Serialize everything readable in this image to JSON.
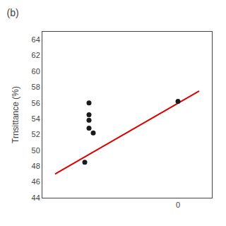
{
  "chart_data": {
    "type": "scatter",
    "title": "(b)",
    "ylabel": "Trnsittance (%)",
    "xlim": [
      -1.6,
      0.4
    ],
    "xticks": [
      0
    ],
    "ylim": [
      44,
      65
    ],
    "yticks": [
      44,
      46,
      48,
      50,
      52,
      54,
      56,
      58,
      60,
      62,
      64
    ],
    "grid": false,
    "series": [
      {
        "type": "scatter",
        "marker": "circle",
        "color": "#1a1a1a",
        "x": [
          -1.05,
          -1.05,
          -1.05,
          -1.05,
          -1.1,
          -1.0,
          0.0
        ],
        "values": [
          56.0,
          54.5,
          53.8,
          52.8,
          48.5,
          52.2,
          56.2
        ]
      },
      {
        "type": "line",
        "line_style": "solid",
        "color": "#dd0000",
        "x": [
          -1.45,
          0.25
        ],
        "values": [
          47.0,
          57.5
        ]
      }
    ]
  }
}
